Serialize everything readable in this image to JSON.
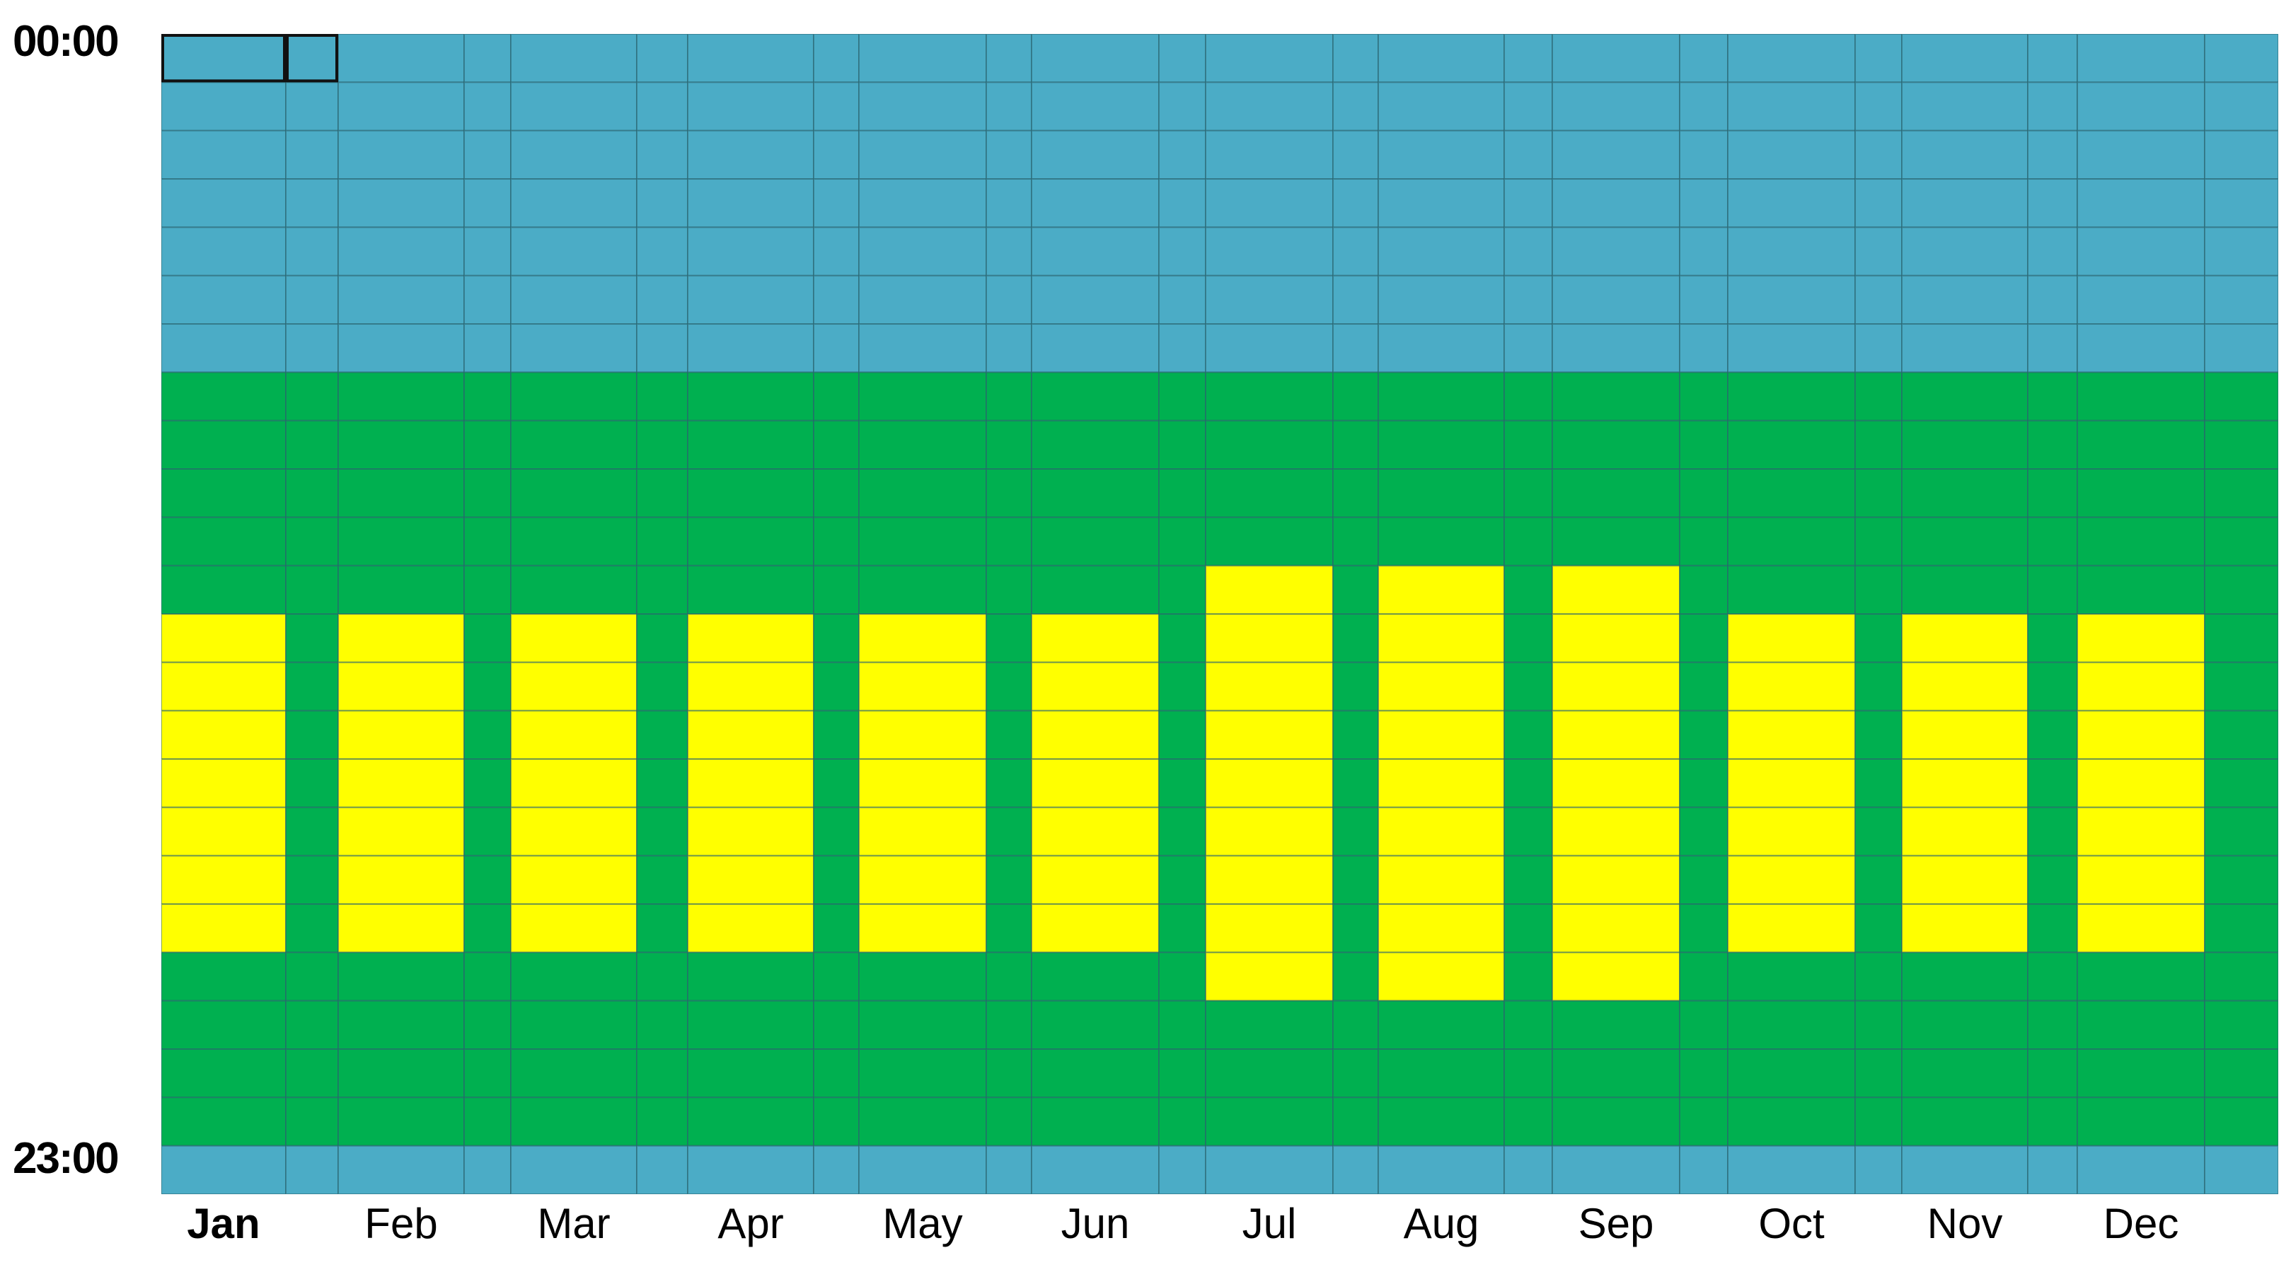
{
  "hour_axis": {
    "start_label": "00:00",
    "end_label": "23:00"
  },
  "months": [
    {
      "label": "Jan",
      "active": true
    },
    {
      "label": "Feb",
      "active": false
    },
    {
      "label": "Mar",
      "active": false
    },
    {
      "label": "Apr",
      "active": false
    },
    {
      "label": "May",
      "active": false
    },
    {
      "label": "Jun",
      "active": false
    },
    {
      "label": "Jul",
      "active": false
    },
    {
      "label": "Aug",
      "active": false
    },
    {
      "label": "Sep",
      "active": false
    },
    {
      "label": "Oct",
      "active": false
    },
    {
      "label": "Nov",
      "active": false
    },
    {
      "label": "Dec",
      "active": false
    }
  ],
  "hours_per_month": 24,
  "periods": {
    "offpeak": {
      "color": "#4BACC6"
    },
    "shoulder": {
      "color": "#00B050"
    },
    "peak": {
      "color": "#FFFF00"
    }
  },
  "schedule": {
    "offpeak_hours": [
      0,
      1,
      2,
      3,
      4,
      5,
      6,
      23
    ],
    "peak_hours_by_month": [
      [
        12,
        19
      ],
      [
        12,
        19
      ],
      [
        12,
        19
      ],
      [
        12,
        19
      ],
      [
        12,
        19
      ],
      [
        12,
        19
      ],
      [
        11,
        20
      ],
      [
        11,
        20
      ],
      [
        11,
        20
      ],
      [
        12,
        19
      ],
      [
        12,
        19
      ],
      [
        12,
        19
      ]
    ],
    "peak_day_columns": [
      0,
      2,
      4,
      6,
      8,
      10,
      12,
      14,
      16,
      18,
      20,
      22
    ]
  },
  "selection": {
    "hour": 0,
    "month_index": 0,
    "column_range": [
      0,
      1
    ]
  }
}
